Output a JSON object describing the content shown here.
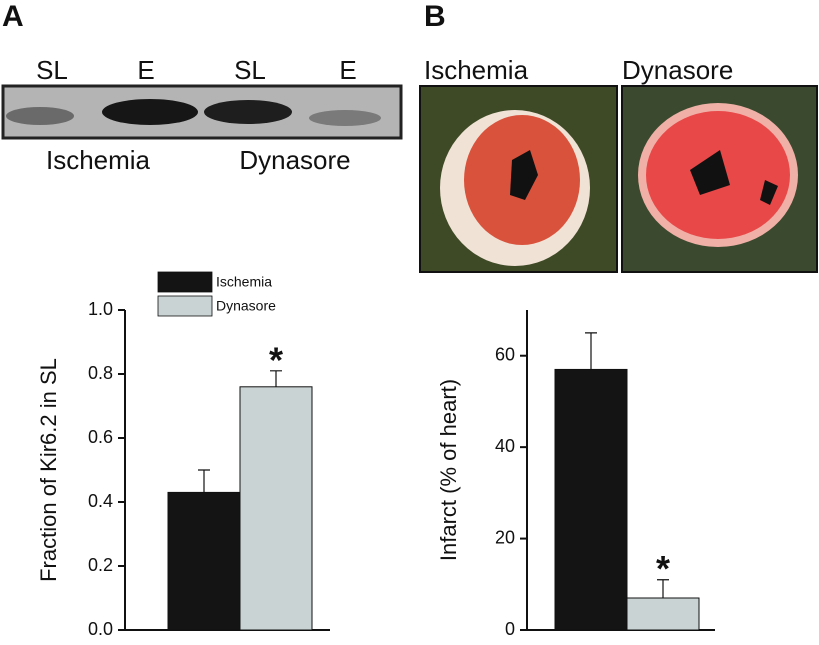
{
  "panels": {
    "a": "A",
    "b": "B"
  },
  "blot": {
    "lanes": [
      "SL",
      "E",
      "SL",
      "E"
    ],
    "groups": [
      "Ischemia",
      "Dynasore"
    ]
  },
  "photos": {
    "labels": [
      "Ischemia",
      "Dynasore"
    ]
  },
  "chart_data": [
    {
      "type": "bar",
      "ylabel": "Fraction of Kir6.2 in SL",
      "series": [
        {
          "name": "Ischemia",
          "color": "#141414",
          "values": [
            0.43
          ],
          "errors": [
            0.07
          ]
        },
        {
          "name": "Dynasore",
          "color": "#c9d3d3",
          "values": [
            0.76
          ],
          "errors": [
            0.05
          ]
        }
      ],
      "annotations": [
        {
          "text": "*",
          "series": 1
        }
      ],
      "ylim": [
        0,
        1
      ],
      "yticks": [
        {
          "value": 0,
          "label": "0.0"
        },
        0.2,
        0.4,
        0.6,
        0.8,
        {
          "value": 1,
          "label": "1.0"
        }
      ],
      "legend": "top"
    },
    {
      "type": "bar",
      "ylabel": "Infarct (% of heart)",
      "series": [
        {
          "color": "#141414",
          "values": [
            57
          ],
          "errors": [
            8
          ]
        },
        {
          "color": "#c9d3d3",
          "values": [
            7
          ],
          "errors": [
            4
          ]
        }
      ],
      "annotations": [
        {
          "text": "*",
          "series": 1
        }
      ],
      "ylim": [
        0,
        70
      ],
      "yticks": [
        0,
        20,
        40,
        60
      ]
    }
  ]
}
